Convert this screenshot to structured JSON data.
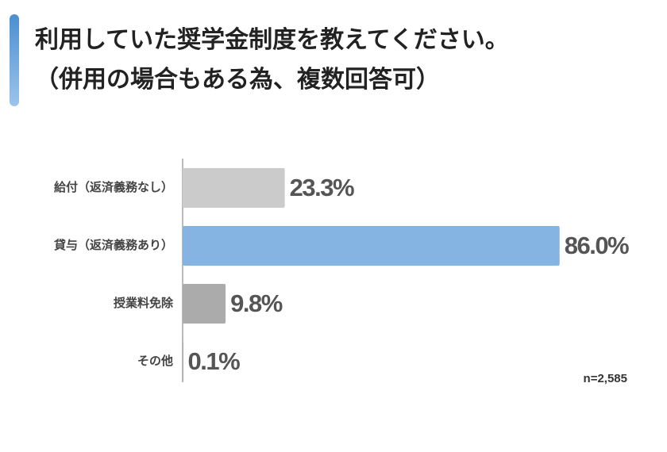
{
  "chart_data": {
    "type": "hbar",
    "title": "利用していた奨学金制度を教えてください。",
    "subtitle": "（併用の場合もある為、複数回答可）",
    "categories": [
      "給付（返済義務なし）",
      "貸与（返済義務あり）",
      "授業料免除",
      "その他"
    ],
    "values": [
      23.3,
      86.0,
      9.8,
      0.1
    ],
    "value_labels": [
      "23.3%",
      "86.0%",
      "9.8%",
      "0.1%"
    ],
    "colors": [
      "#cbcbcb",
      "#85b3e2",
      "#ababab",
      "#9a9a9a"
    ],
    "annotation": "n=2,585"
  }
}
